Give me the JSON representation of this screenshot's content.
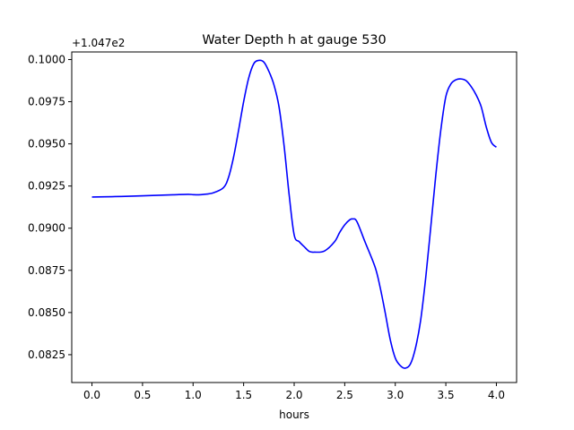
{
  "chart_data": {
    "type": "line",
    "title": "Water Depth h at gauge 530",
    "xlabel": "hours",
    "ylabel": "",
    "y_offset_label": "+1.047e2",
    "y_offset_value": 104.7,
    "xlim": [
      -0.2,
      4.2
    ],
    "ylim": [
      0.08085,
      0.10045
    ],
    "x_ticks": [
      0.0,
      0.5,
      1.0,
      1.5,
      2.0,
      2.5,
      3.0,
      3.5,
      4.0
    ],
    "x_tick_labels": [
      "0.0",
      "0.5",
      "1.0",
      "1.5",
      "2.0",
      "2.5",
      "3.0",
      "3.5",
      "4.0"
    ],
    "y_ticks": [
      0.0825,
      0.085,
      0.0875,
      0.09,
      0.0925,
      0.095,
      0.0975,
      0.1
    ],
    "y_tick_labels": [
      "0.0825",
      "0.0850",
      "0.0875",
      "0.0900",
      "0.0925",
      "0.0950",
      "0.0975",
      "0.1000"
    ],
    "grid": false,
    "line_color": "#0000ff",
    "series": [
      {
        "x": [
          0.0,
          0.2,
          0.4,
          0.6,
          0.8,
          0.95,
          1.0,
          1.05,
          1.1,
          1.2,
          1.3,
          1.35,
          1.4,
          1.45,
          1.5,
          1.55,
          1.6,
          1.65,
          1.7,
          1.75,
          1.8,
          1.85,
          1.9,
          1.95,
          2.0,
          2.05,
          2.1,
          2.15,
          2.2,
          2.3,
          2.4,
          2.45,
          2.5,
          2.55,
          2.58,
          2.62,
          2.7,
          2.8,
          2.85,
          2.9,
          2.95,
          3.0,
          3.05,
          3.1,
          3.15,
          3.2,
          3.25,
          3.3,
          3.35,
          3.4,
          3.45,
          3.5,
          3.55,
          3.6,
          3.65,
          3.7,
          3.75,
          3.8,
          3.85,
          3.9,
          3.95,
          4.0
        ],
        "y": [
          0.09185,
          0.09187,
          0.0919,
          0.09194,
          0.09198,
          0.09201,
          0.09199,
          0.09198,
          0.092,
          0.0921,
          0.0924,
          0.093,
          0.0942,
          0.0958,
          0.0975,
          0.0989,
          0.09975,
          0.09995,
          0.09985,
          0.0993,
          0.0985,
          0.0972,
          0.0949,
          0.092,
          0.0896,
          0.0892,
          0.0889,
          0.08862,
          0.08858,
          0.08865,
          0.0892,
          0.08975,
          0.0902,
          0.0905,
          0.09055,
          0.0904,
          0.0892,
          0.0877,
          0.0865,
          0.085,
          0.0834,
          0.0823,
          0.08185,
          0.0817,
          0.08195,
          0.0829,
          0.0845,
          0.087,
          0.09,
          0.0931,
          0.0958,
          0.0978,
          0.09855,
          0.0988,
          0.09885,
          0.09875,
          0.0984,
          0.0979,
          0.0972,
          0.096,
          0.0951,
          0.0948
        ]
      }
    ]
  }
}
